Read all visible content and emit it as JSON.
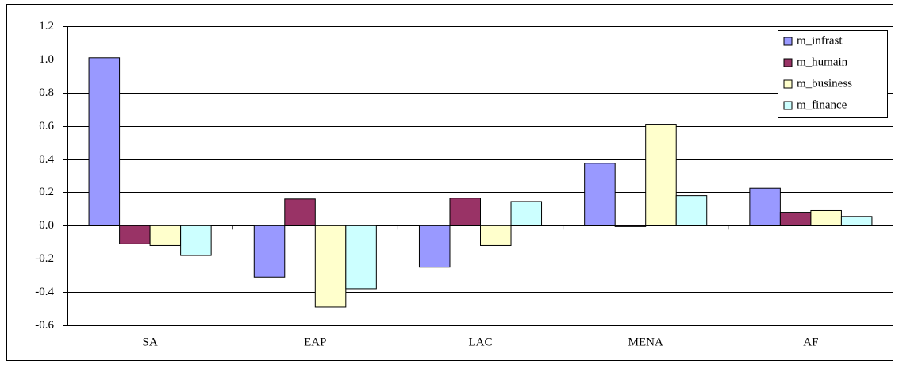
{
  "chart_data": {
    "type": "bar",
    "categories": [
      "SA",
      "EAP",
      "LAC",
      "MENA",
      "AF"
    ],
    "series": [
      {
        "name": "m_infrast",
        "color": "#9999ff",
        "values": [
          1.01,
          -0.31,
          -0.25,
          0.375,
          0.225
        ]
      },
      {
        "name": "m_humain",
        "color": "#993366",
        "values": [
          -0.11,
          0.16,
          0.165,
          -0.005,
          0.08
        ]
      },
      {
        "name": "m_business",
        "color": "#ffffcc",
        "values": [
          -0.12,
          -0.49,
          -0.12,
          0.61,
          0.09
        ]
      },
      {
        "name": "m_finance",
        "color": "#ccffff",
        "values": [
          -0.18,
          -0.38,
          0.145,
          0.18,
          0.055
        ]
      }
    ],
    "ylim": [
      -0.6,
      1.2
    ],
    "yticks": [
      -0.6,
      -0.4,
      -0.2,
      {
        "value": 0,
        "label": "0.0"
      },
      0.2,
      0.4,
      0.6,
      0.8,
      {
        "value": 1,
        "label": "1.0"
      },
      1.2
    ],
    "grid": true,
    "legend": "top-right"
  }
}
